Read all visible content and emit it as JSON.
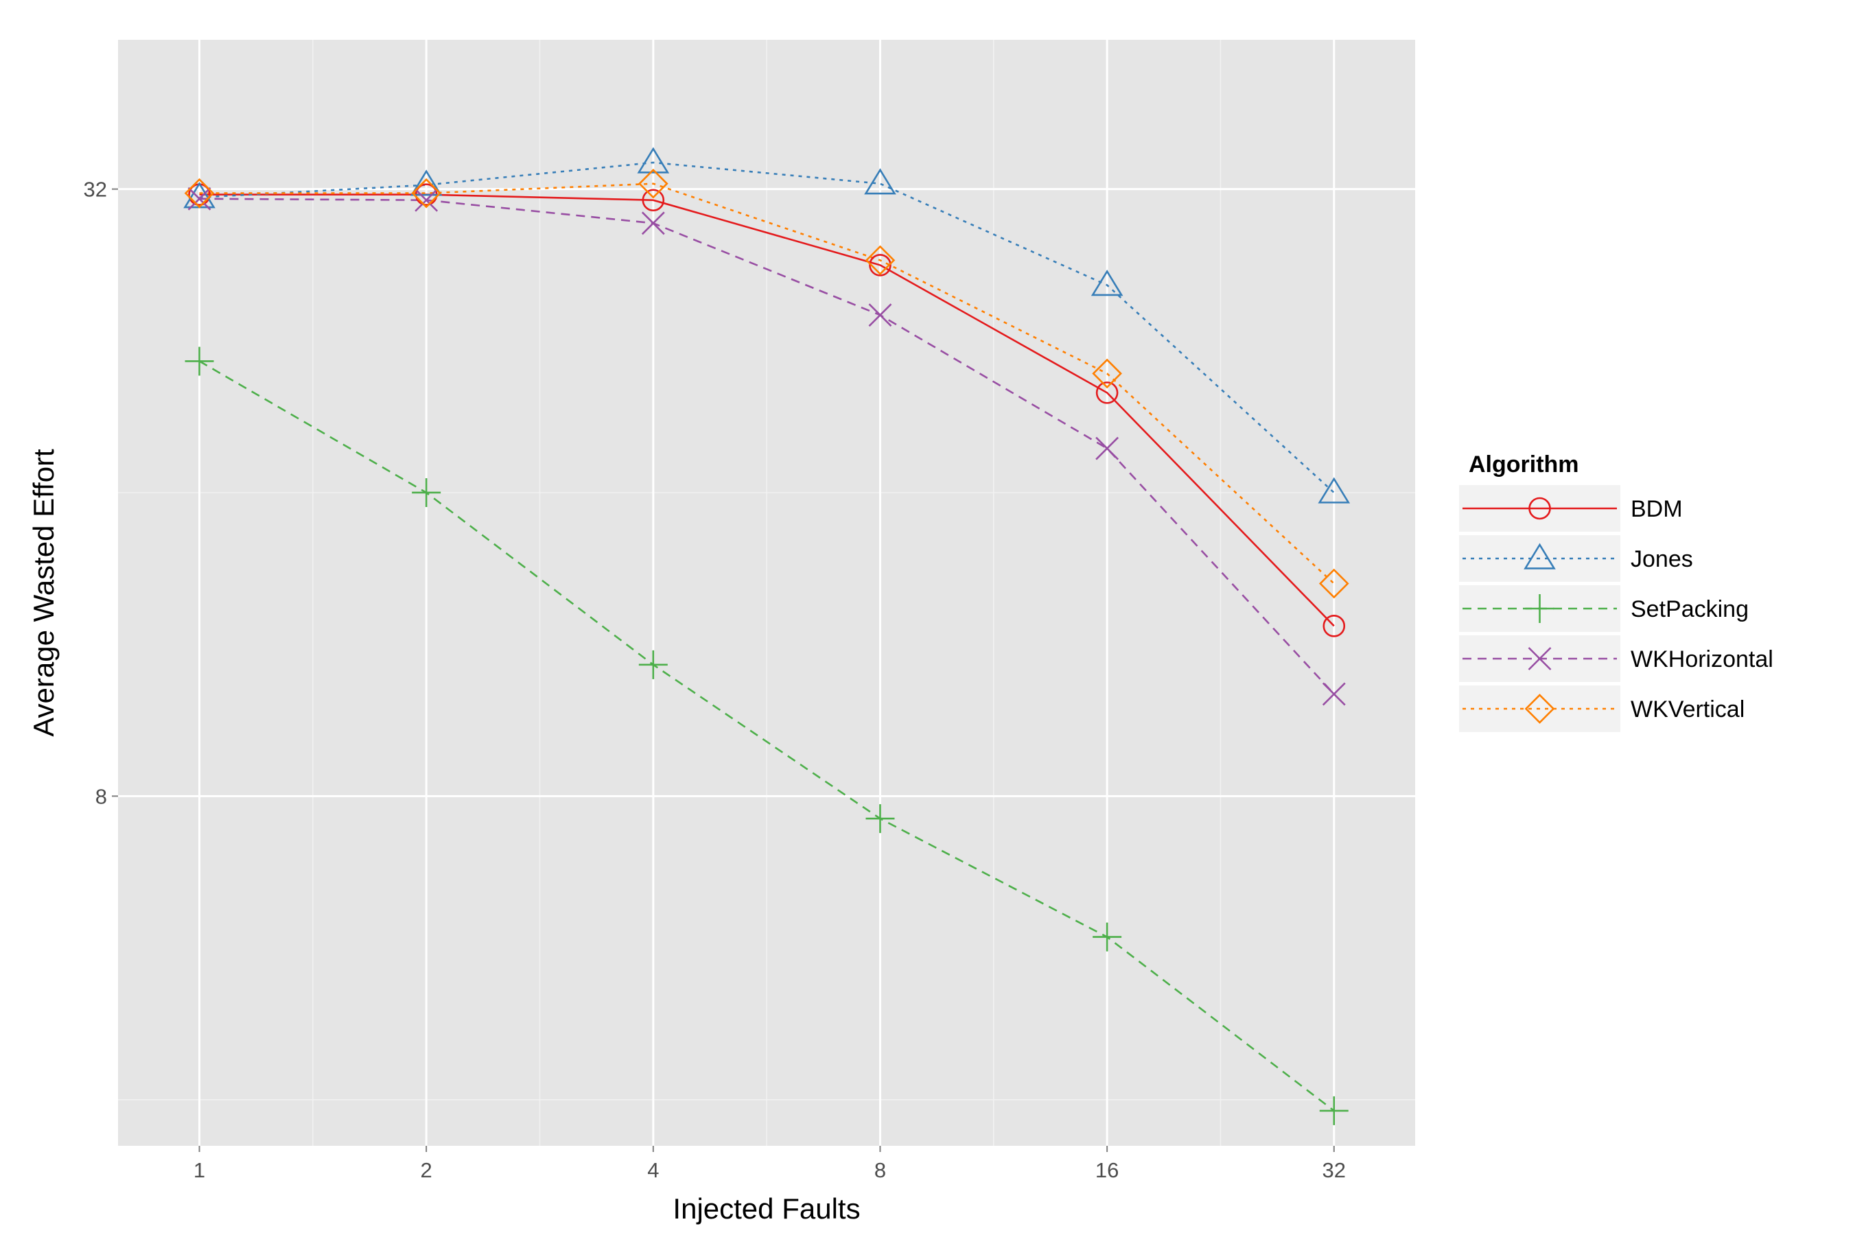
{
  "chart_data": {
    "type": "line",
    "title": "",
    "xlabel": "Injected Faults",
    "ylabel": "Average Wasted Effort",
    "x_scale": "log2",
    "y_scale": "log2",
    "x": [
      1,
      2,
      4,
      8,
      16,
      32
    ],
    "x_tick_labels": [
      "1",
      "2",
      "4",
      "8",
      "16",
      "32"
    ],
    "y_ticks": [
      8,
      32
    ],
    "y_tick_labels": [
      "8",
      "32"
    ],
    "xlim": [
      0.78,
      41
    ],
    "ylim": [
      3.6,
      45
    ],
    "grid": true,
    "legend": {
      "title": "Algorithm",
      "position": "right"
    },
    "series": [
      {
        "name": "BDM",
        "color": "#e41a1c",
        "linestyle": "solid",
        "marker": "circle",
        "values": [
          31.6,
          31.6,
          31.2,
          26.9,
          20.1,
          11.8
        ]
      },
      {
        "name": "Jones",
        "color": "#377eb8",
        "linestyle": "dotted",
        "marker": "triangle",
        "values": [
          31.4,
          32.3,
          34.0,
          32.4,
          25.7,
          16.0
        ]
      },
      {
        "name": "SetPacking",
        "color": "#4daf4a",
        "linestyle": "dashed",
        "marker": "plus",
        "values": [
          21.6,
          16.0,
          10.8,
          7.6,
          5.8,
          3.9
        ]
      },
      {
        "name": "WKHorizontal",
        "color": "#984ea3",
        "linestyle": "dashed",
        "marker": "x",
        "values": [
          31.3,
          31.2,
          29.6,
          24.0,
          17.7,
          10.1
        ]
      },
      {
        "name": "WKVertical",
        "color": "#ff7f00",
        "linestyle": "dotted",
        "marker": "diamond",
        "values": [
          31.7,
          31.7,
          32.4,
          27.2,
          21.0,
          13.0
        ]
      }
    ]
  }
}
